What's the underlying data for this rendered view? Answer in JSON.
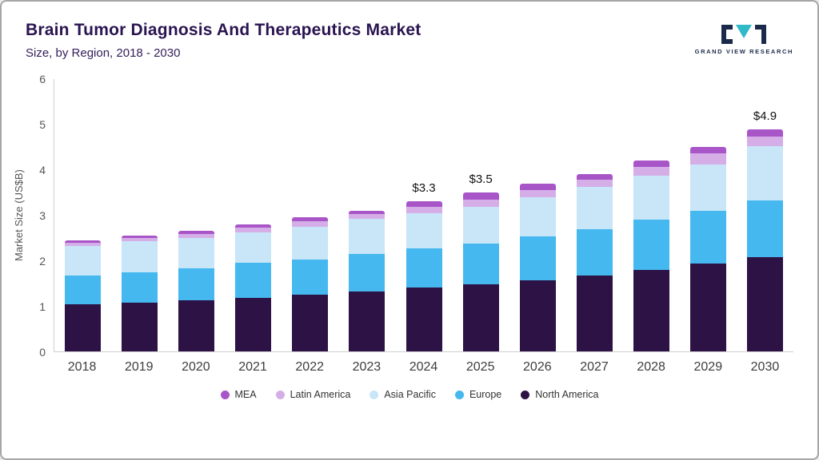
{
  "header": {
    "title": "Brain Tumor Diagnosis And Therapeutics Market",
    "subtitle": "Size, by Region, 2018 - 2030",
    "logo_text": "GRAND VIEW RESEARCH"
  },
  "colors": {
    "title": "#2a1450",
    "logo_navy": "#1b2a4a",
    "logo_teal": "#2fb9c9"
  },
  "chart_data": {
    "type": "bar",
    "stacked": true,
    "title": "Brain Tumor Diagnosis And Therapeutics Market Size, by Region, 2018 - 2030",
    "xlabel": "",
    "ylabel": "Market Size (US$B)",
    "ylim": [
      0,
      6
    ],
    "yticks": [
      0,
      1,
      2,
      3,
      4,
      5,
      6
    ],
    "grid": false,
    "legend_position": "bottom",
    "categories": [
      "2018",
      "2019",
      "2020",
      "2021",
      "2022",
      "2023",
      "2024",
      "2025",
      "2026",
      "2027",
      "2028",
      "2029",
      "2030"
    ],
    "series": [
      {
        "name": "North America",
        "color": "#2d1245",
        "values": [
          1.03,
          1.07,
          1.12,
          1.18,
          1.25,
          1.32,
          1.4,
          1.48,
          1.57,
          1.67,
          1.8,
          1.94,
          2.08
        ]
      },
      {
        "name": "Europe",
        "color": "#45b8ef",
        "values": [
          0.64,
          0.68,
          0.71,
          0.77,
          0.78,
          0.83,
          0.87,
          0.9,
          0.96,
          1.03,
          1.1,
          1.16,
          1.25
        ]
      },
      {
        "name": "Asia Pacific",
        "color": "#c8e6f8",
        "values": [
          0.66,
          0.67,
          0.67,
          0.68,
          0.72,
          0.78,
          0.78,
          0.8,
          0.87,
          0.92,
          0.98,
          1.02,
          1.19
        ]
      },
      {
        "name": "Latin America",
        "color": "#d5aee8",
        "values": [
          0.07,
          0.08,
          0.09,
          0.1,
          0.12,
          0.09,
          0.13,
          0.17,
          0.15,
          0.16,
          0.18,
          0.24,
          0.22
        ]
      },
      {
        "name": "MEA",
        "color": "#a855c7",
        "values": [
          0.05,
          0.05,
          0.06,
          0.07,
          0.08,
          0.08,
          0.12,
          0.15,
          0.15,
          0.12,
          0.14,
          0.14,
          0.16
        ]
      }
    ],
    "annotations": [
      {
        "category": "2024",
        "label": "$3.3"
      },
      {
        "category": "2025",
        "label": "$3.5"
      },
      {
        "category": "2030",
        "label": "$4.9"
      }
    ],
    "legend": [
      "MEA",
      "Latin America",
      "Asia Pacific",
      "Europe",
      "North America"
    ]
  }
}
